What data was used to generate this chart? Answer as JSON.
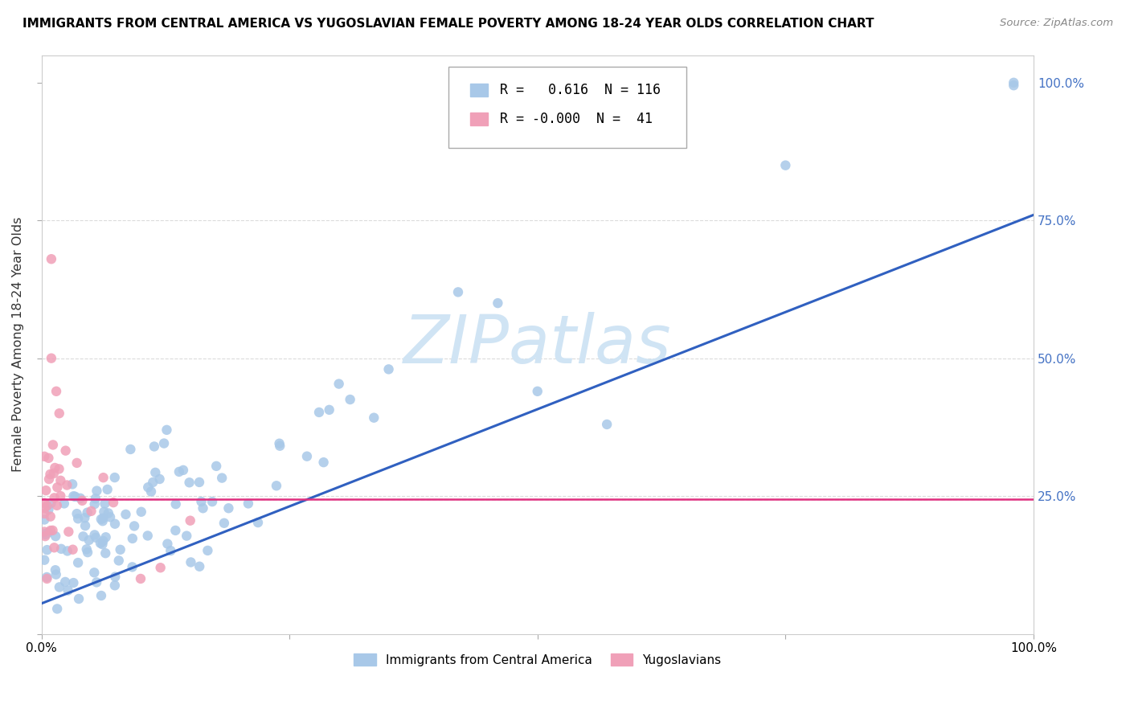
{
  "title": "IMMIGRANTS FROM CENTRAL AMERICA VS YUGOSLAVIAN FEMALE POVERTY AMONG 18-24 YEAR OLDS CORRELATION CHART",
  "source": "Source: ZipAtlas.com",
  "ylabel": "Female Poverty Among 18-24 Year Olds",
  "blue_R": 0.616,
  "blue_N": 116,
  "pink_R": -0.0,
  "pink_N": 41,
  "blue_color": "#a8c8e8",
  "pink_color": "#f0a0b8",
  "blue_line_color": "#3060c0",
  "pink_line_color": "#e03080",
  "legend_label_blue": "Immigrants from Central America",
  "legend_label_pink": "Yugoslavians",
  "blue_line_x0": 0.0,
  "blue_line_y0": 0.055,
  "blue_line_x1": 1.0,
  "blue_line_y1": 0.76,
  "pink_line_y": 0.245,
  "dashed_hline_y": 0.245,
  "xlim": [
    0.0,
    1.0
  ],
  "ylim": [
    0.0,
    1.05
  ],
  "right_axis_color": "#4472c4",
  "watermark_color": "#d0e4f4"
}
